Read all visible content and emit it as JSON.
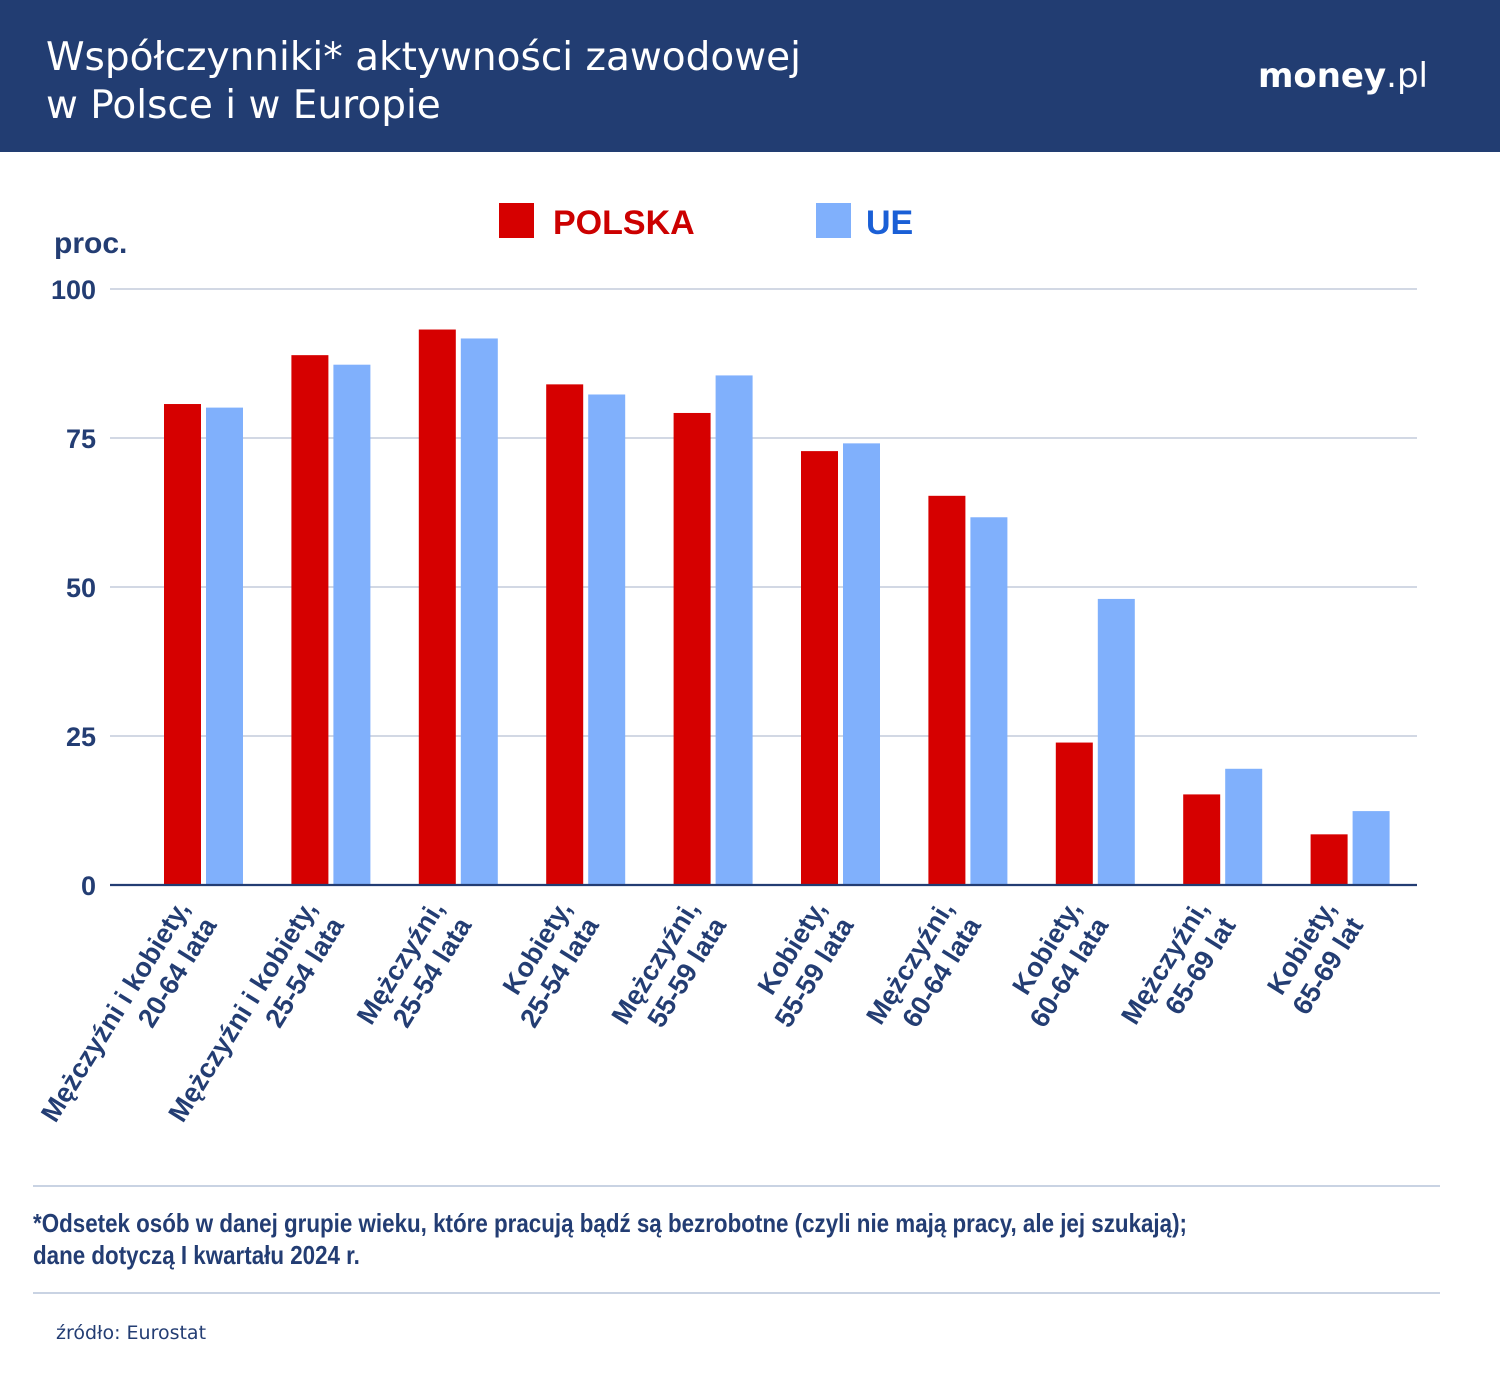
{
  "header": {
    "title_line1": "Współczynniki* aktywności zawodowej",
    "title_line2": "w Polsce i w Europie",
    "logo_main": "money",
    "logo_tld": ".pl",
    "background_color": "#223d72"
  },
  "chart_data": {
    "type": "bar",
    "ylabel": "proc.",
    "ylim": [
      0,
      100
    ],
    "yticks": [
      0,
      25,
      50,
      75,
      100
    ],
    "grid": true,
    "legend_position": "top-center",
    "categories": [
      [
        "Mężczyźni i kobiety,",
        "20-64 lata"
      ],
      [
        "Mężczyźni i kobiety,",
        "25-54 lata"
      ],
      [
        "Mężczyźni,",
        "25-54 lata"
      ],
      [
        "Kobiety,",
        "25-54 lata"
      ],
      [
        "Mężczyźni,",
        "55-59 lata"
      ],
      [
        "Kobiety,",
        "55-59 lata"
      ],
      [
        "Mężczyźni,",
        "60-64 lata"
      ],
      [
        "Kobiety,",
        "60-64 lata"
      ],
      [
        "Mężczyźni,",
        "65-69 lat"
      ],
      [
        "Kobiety,",
        "65-69 lat"
      ]
    ],
    "series": [
      {
        "name": "POLSKA",
        "color": "#d60000",
        "values": [
          80.7,
          88.9,
          93.2,
          84.0,
          79.2,
          72.8,
          65.3,
          23.9,
          15.2,
          8.5
        ]
      },
      {
        "name": "UE",
        "color": "#80b0fc",
        "values": [
          80.1,
          87.3,
          91.7,
          82.3,
          85.5,
          74.1,
          61.7,
          48.0,
          19.5,
          12.4
        ]
      }
    ],
    "legend_text_colors": [
      "#cc0000",
      "#1a5fd6"
    ]
  },
  "footnote": {
    "line1": "*Odsetek osób w danej grupie wieku, które pracują bądź są bezrobotne (czyli nie mają pracy, ale jej szukają);",
    "line2": "dane dotyczą I kwartału 2024 r."
  },
  "source": "źródło: Eurostat"
}
